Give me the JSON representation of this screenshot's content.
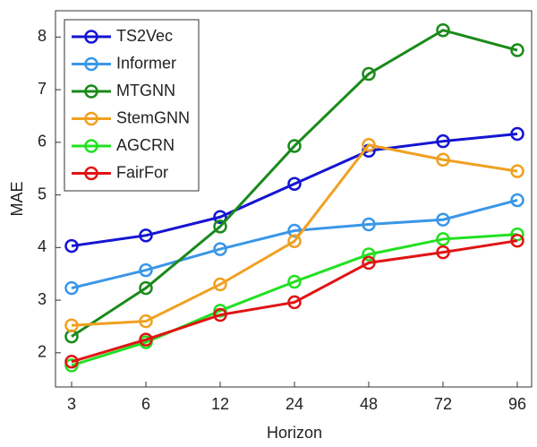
{
  "chart_data": {
    "type": "line",
    "x_label": "Horizon",
    "y_label": "MAE",
    "categories": [
      "3",
      "6",
      "12",
      "24",
      "48",
      "72",
      "96"
    ],
    "series": [
      {
        "name": "TS2Vec",
        "color": "#1414d2",
        "values": [
          4.03,
          4.23,
          4.58,
          5.21,
          5.84,
          6.02,
          6.16
        ]
      },
      {
        "name": "Informer",
        "color": "#3a96e8",
        "values": [
          3.23,
          3.57,
          3.97,
          4.32,
          4.44,
          4.53,
          4.9
        ]
      },
      {
        "name": "MTGNN",
        "color": "#1a8a1a",
        "values": [
          2.31,
          3.23,
          4.4,
          5.93,
          7.3,
          8.13,
          7.75
        ]
      },
      {
        "name": "StemGNN",
        "color": "#f0a020",
        "values": [
          2.52,
          2.6,
          3.3,
          4.12,
          5.95,
          5.67,
          5.45
        ]
      },
      {
        "name": "AGCRN",
        "color": "#22e022",
        "values": [
          1.76,
          2.2,
          2.8,
          3.35,
          3.87,
          4.16,
          4.25
        ]
      },
      {
        "name": "FairFor",
        "color": "#e01414",
        "values": [
          1.83,
          2.25,
          2.72,
          2.96,
          3.71,
          3.91,
          4.13
        ]
      }
    ],
    "ylim": [
      1.35,
      8.5
    ],
    "yticks": [
      2,
      3,
      4,
      5,
      6,
      7,
      8
    ],
    "grid": false,
    "legend": "upper left"
  }
}
